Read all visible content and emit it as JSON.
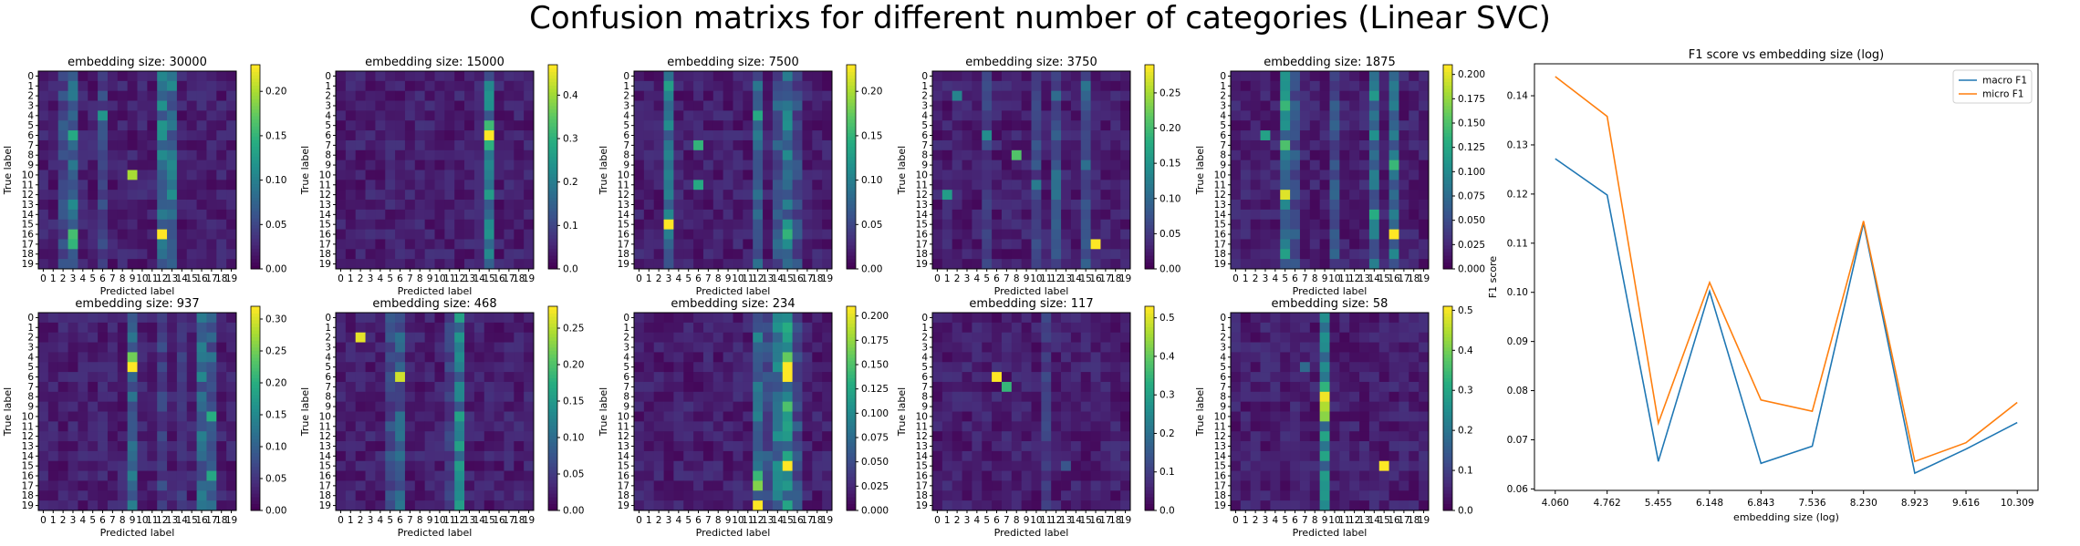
{
  "figure": {
    "suptitle": "Confusion matrixs for different number of categories (Linear SVC)"
  },
  "colormap": "viridis",
  "chart_data": [
    {
      "type": "heatmap",
      "title": "embedding size: 30000",
      "xlabel": "Predicted label",
      "ylabel": "True label",
      "labels": [
        "0",
        "1",
        "2",
        "3",
        "4",
        "5",
        "6",
        "7",
        "8",
        "9",
        "10",
        "11",
        "12",
        "13",
        "14",
        "15",
        "16",
        "17",
        "18",
        "19"
      ],
      "colorbar_ticks": [
        "0.00",
        "0.05",
        "0.10",
        "0.15",
        "0.20"
      ],
      "vmin": 0,
      "vmax": 0.23,
      "highlights": [
        [
          16,
          12,
          0.23
        ],
        [
          10,
          9,
          0.2
        ],
        [
          16,
          3,
          0.16
        ],
        [
          17,
          3,
          0.15
        ],
        [
          6,
          3,
          0.14
        ],
        [
          4,
          6,
          0.12
        ],
        [
          13,
          3,
          0.11
        ],
        [
          5,
          12,
          0.12
        ],
        [
          8,
          12,
          0.11
        ]
      ],
      "hot_columns": [
        [
          3,
          0.07
        ],
        [
          12,
          0.09
        ],
        [
          13,
          0.08
        ],
        [
          6,
          0.05
        ],
        [
          2,
          0.05
        ]
      ]
    },
    {
      "type": "heatmap",
      "title": "embedding size: 15000",
      "xlabel": "Predicted label",
      "ylabel": "True label",
      "labels": [
        "0",
        "1",
        "2",
        "3",
        "4",
        "5",
        "6",
        "7",
        "8",
        "9",
        "10",
        "11",
        "12",
        "13",
        "14",
        "15",
        "16",
        "17",
        "18",
        "19"
      ],
      "colorbar_ticks": [
        "0.0",
        "0.1",
        "0.2",
        "0.3",
        "0.4"
      ],
      "vmin": 0,
      "vmax": 0.47,
      "highlights": [
        [
          6,
          15,
          0.47
        ],
        [
          5,
          15,
          0.32
        ],
        [
          7,
          15,
          0.3
        ],
        [
          1,
          15,
          0.22
        ],
        [
          12,
          15,
          0.26
        ],
        [
          16,
          15,
          0.24
        ]
      ],
      "hot_columns": [
        [
          15,
          0.18
        ],
        [
          14,
          0.05
        ]
      ]
    },
    {
      "type": "heatmap",
      "title": "embedding size: 7500",
      "xlabel": "Predicted label",
      "ylabel": "True label",
      "labels": [
        "0",
        "1",
        "2",
        "3",
        "4",
        "5",
        "6",
        "7",
        "8",
        "9",
        "10",
        "11",
        "12",
        "13",
        "14",
        "15",
        "16",
        "17",
        "18",
        "19"
      ],
      "colorbar_ticks": [
        "0.00",
        "0.05",
        "0.10",
        "0.15",
        "0.20"
      ],
      "vmin": 0,
      "vmax": 0.23,
      "highlights": [
        [
          15,
          3,
          0.23
        ],
        [
          7,
          6,
          0.15
        ],
        [
          11,
          6,
          0.14
        ],
        [
          4,
          12,
          0.14
        ],
        [
          1,
          3,
          0.13
        ],
        [
          16,
          15,
          0.15
        ]
      ],
      "hot_columns": [
        [
          3,
          0.08
        ],
        [
          15,
          0.09
        ],
        [
          12,
          0.07
        ],
        [
          14,
          0.06
        ],
        [
          16,
          0.05
        ]
      ]
    },
    {
      "type": "heatmap",
      "title": "embedding size: 3750",
      "xlabel": "Predicted label",
      "ylabel": "True label",
      "labels": [
        "0",
        "1",
        "2",
        "3",
        "4",
        "5",
        "6",
        "7",
        "8",
        "9",
        "10",
        "11",
        "12",
        "13",
        "14",
        "15",
        "16",
        "17",
        "18",
        "19"
      ],
      "colorbar_ticks": [
        "0.00",
        "0.05",
        "0.10",
        "0.15",
        "0.20",
        "0.25"
      ],
      "vmin": 0,
      "vmax": 0.29,
      "highlights": [
        [
          17,
          16,
          0.29
        ],
        [
          8,
          8,
          0.21
        ],
        [
          12,
          1,
          0.16
        ],
        [
          6,
          5,
          0.14
        ],
        [
          2,
          2,
          0.13
        ],
        [
          11,
          10,
          0.12
        ]
      ],
      "hot_columns": [
        [
          12,
          0.08
        ],
        [
          15,
          0.09
        ],
        [
          10,
          0.06
        ],
        [
          5,
          0.05
        ]
      ]
    },
    {
      "type": "heatmap",
      "title": "embedding size: 1875",
      "xlabel": "Predicted label",
      "ylabel": "True label",
      "labels": [
        "0",
        "1",
        "2",
        "3",
        "4",
        "5",
        "6",
        "7",
        "8",
        "9",
        "10",
        "11",
        "12",
        "13",
        "14",
        "15",
        "16",
        "17",
        "18",
        "19"
      ],
      "colorbar_ticks": [
        "0.000",
        "0.025",
        "0.050",
        "0.075",
        "0.100",
        "0.125",
        "0.150",
        "0.175",
        "0.200"
      ],
      "vmin": 0,
      "vmax": 0.21,
      "highlights": [
        [
          16,
          16,
          0.21
        ],
        [
          12,
          5,
          0.2
        ],
        [
          7,
          5,
          0.15
        ],
        [
          3,
          5,
          0.14
        ],
        [
          9,
          16,
          0.14
        ],
        [
          14,
          14,
          0.13
        ],
        [
          6,
          3,
          0.12
        ]
      ],
      "hot_columns": [
        [
          5,
          0.09
        ],
        [
          14,
          0.08
        ],
        [
          16,
          0.07
        ],
        [
          6,
          0.05
        ],
        [
          10,
          0.05
        ]
      ]
    },
    {
      "type": "heatmap",
      "title": "embedding size: 937",
      "xlabel": "Predicted label",
      "ylabel": "True label",
      "labels": [
        "0",
        "1",
        "2",
        "3",
        "4",
        "5",
        "6",
        "7",
        "8",
        "9",
        "10",
        "11",
        "12",
        "13",
        "14",
        "15",
        "16",
        "17",
        "18",
        "19"
      ],
      "colorbar_ticks": [
        "0.00",
        "0.05",
        "0.10",
        "0.15",
        "0.20",
        "0.25",
        "0.30"
      ],
      "vmin": 0,
      "vmax": 0.32,
      "highlights": [
        [
          5,
          9,
          0.32
        ],
        [
          4,
          9,
          0.25
        ],
        [
          10,
          17,
          0.2
        ],
        [
          16,
          17,
          0.19
        ],
        [
          6,
          16,
          0.15
        ]
      ],
      "hot_columns": [
        [
          9,
          0.1
        ],
        [
          16,
          0.1
        ],
        [
          17,
          0.09
        ],
        [
          12,
          0.06
        ],
        [
          14,
          0.05
        ]
      ]
    },
    {
      "type": "heatmap",
      "title": "embedding size: 468",
      "xlabel": "Predicted label",
      "ylabel": "True label",
      "labels": [
        "0",
        "1",
        "2",
        "3",
        "4",
        "5",
        "6",
        "7",
        "8",
        "9",
        "10",
        "11",
        "12",
        "13",
        "14",
        "15",
        "16",
        "17",
        "18",
        "19"
      ],
      "colorbar_ticks": [
        "0.00",
        "0.05",
        "0.10",
        "0.15",
        "0.20",
        "0.25"
      ],
      "vmin": 0,
      "vmax": 0.28,
      "highlights": [
        [
          2,
          2,
          0.27
        ],
        [
          6,
          6,
          0.26
        ],
        [
          10,
          12,
          0.16
        ],
        [
          8,
          12,
          0.13
        ],
        [
          3,
          12,
          0.12
        ]
      ],
      "hot_columns": [
        [
          12,
          0.12
        ],
        [
          6,
          0.08
        ],
        [
          5,
          0.06
        ],
        [
          11,
          0.05
        ]
      ]
    },
    {
      "type": "heatmap",
      "title": "embedding size: 234",
      "xlabel": "Predicted label",
      "ylabel": "True label",
      "labels": [
        "0",
        "1",
        "2",
        "3",
        "4",
        "5",
        "6",
        "7",
        "8",
        "9",
        "10",
        "11",
        "12",
        "13",
        "14",
        "15",
        "16",
        "17",
        "18",
        "19"
      ],
      "colorbar_ticks": [
        "0.000",
        "0.025",
        "0.050",
        "0.075",
        "0.100",
        "0.125",
        "0.150",
        "0.175",
        "0.200"
      ],
      "vmin": 0,
      "vmax": 0.21,
      "highlights": [
        [
          5,
          15,
          0.21
        ],
        [
          6,
          15,
          0.21
        ],
        [
          15,
          15,
          0.21
        ],
        [
          19,
          12,
          0.21
        ],
        [
          17,
          12,
          0.17
        ],
        [
          4,
          15,
          0.16
        ],
        [
          9,
          15,
          0.15
        ],
        [
          16,
          12,
          0.14
        ]
      ],
      "hot_columns": [
        [
          15,
          0.1
        ],
        [
          14,
          0.08
        ],
        [
          12,
          0.07
        ],
        [
          13,
          0.05
        ],
        [
          16,
          0.05
        ]
      ]
    },
    {
      "type": "heatmap",
      "title": "embedding size: 117",
      "xlabel": "Predicted label",
      "ylabel": "True label",
      "labels": [
        "0",
        "1",
        "2",
        "3",
        "4",
        "5",
        "6",
        "7",
        "8",
        "9",
        "10",
        "11",
        "12",
        "13",
        "14",
        "15",
        "16",
        "17",
        "18",
        "19"
      ],
      "colorbar_ticks": [
        "0.0",
        "0.1",
        "0.2",
        "0.3",
        "0.4",
        "0.5"
      ],
      "vmin": 0,
      "vmax": 0.53,
      "highlights": [
        [
          6,
          6,
          0.53
        ],
        [
          7,
          7,
          0.35
        ],
        [
          15,
          13,
          0.14
        ],
        [
          0,
          11,
          0.12
        ]
      ],
      "hot_columns": [
        [
          11,
          0.09
        ],
        [
          4,
          0.05
        ]
      ]
    },
    {
      "type": "heatmap",
      "title": "embedding size: 58",
      "xlabel": "Predicted label",
      "ylabel": "True label",
      "labels": [
        "0",
        "1",
        "2",
        "3",
        "4",
        "5",
        "6",
        "7",
        "8",
        "9",
        "10",
        "11",
        "12",
        "13",
        "14",
        "15",
        "16",
        "17",
        "18",
        "19"
      ],
      "colorbar_ticks": [
        "0.0",
        "0.1",
        "0.2",
        "0.3",
        "0.4",
        "0.5"
      ],
      "vmin": 0,
      "vmax": 0.51,
      "highlights": [
        [
          15,
          15,
          0.51
        ],
        [
          8,
          9,
          0.5
        ],
        [
          9,
          9,
          0.45
        ],
        [
          10,
          9,
          0.42
        ],
        [
          7,
          9,
          0.33
        ],
        [
          12,
          9,
          0.3
        ],
        [
          16,
          9,
          0.28
        ],
        [
          5,
          7,
          0.18
        ]
      ],
      "hot_columns": [
        [
          9,
          0.22
        ],
        [
          6,
          0.05
        ],
        [
          4,
          0.04
        ]
      ]
    },
    {
      "type": "line",
      "title": "F1 score vs embedding size (log)",
      "xlabel": "embedding size (log)",
      "ylabel": "F1 score",
      "x": [
        4.06,
        4.762,
        5.455,
        6.148,
        6.843,
        7.536,
        8.23,
        8.923,
        9.616,
        10.309
      ],
      "xticks": [
        "4.060",
        "4.762",
        "5.455",
        "6.148",
        "6.843",
        "7.536",
        "8.230",
        "8.923",
        "9.616",
        "10.309"
      ],
      "yticks": [
        "0.06",
        "0.07",
        "0.08",
        "0.09",
        "0.10",
        "0.11",
        "0.12",
        "0.13",
        "0.14"
      ],
      "ylim": [
        0.0597,
        0.1465
      ],
      "legend": "top-right",
      "series": [
        {
          "name": "macro F1",
          "color": "#1f77b4",
          "values": [
            0.1272,
            0.1198,
            0.0656,
            0.1002,
            0.0652,
            0.0687,
            0.1141,
            0.0632,
            0.0681,
            0.0735
          ]
        },
        {
          "name": "micro F1",
          "color": "#ff7f0e",
          "values": [
            0.1439,
            0.1358,
            0.0734,
            0.102,
            0.0781,
            0.0758,
            0.1145,
            0.0656,
            0.0694,
            0.0776
          ]
        }
      ]
    }
  ]
}
